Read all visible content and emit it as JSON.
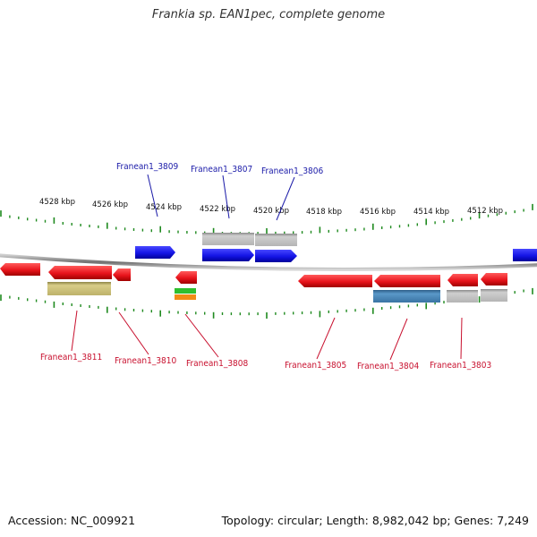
{
  "title": "Frankia sp. EAN1pec, complete genome",
  "footer": {
    "accession": "Accession: NC_009921",
    "summary": "Topology: circular; Length: 8,982,042 bp; Genes: 7,249"
  },
  "colors": {
    "red": "#e8141c",
    "blue": "#1414e6",
    "gray": "#bcbcbc",
    "olive": "#c9be76",
    "steel": "#4a86b4",
    "tick_green": "#1f8a1f",
    "backbone": "#777777",
    "label_red": "#c8102e",
    "label_blue": "#1a1aa8"
  },
  "ticks": [
    {
      "label": "4528 kbp"
    },
    {
      "label": "4526 kbp"
    },
    {
      "label": "4524 kbp"
    },
    {
      "label": "4522 kbp"
    },
    {
      "label": "4520 kbp"
    },
    {
      "label": "4518 kbp"
    },
    {
      "label": "4516 kbp"
    },
    {
      "label": "4514 kbp"
    },
    {
      "label": "4512 kbp"
    }
  ],
  "labels": {
    "top": [
      {
        "text": "Franean1_3809"
      },
      {
        "text": "Franean1_3807"
      },
      {
        "text": "Franean1_3806"
      }
    ],
    "bottom": [
      {
        "text": "Franean1_3811"
      },
      {
        "text": "Franean1_3810"
      },
      {
        "text": "Franean1_3808"
      },
      {
        "text": "Franean1_3805"
      },
      {
        "text": "Franean1_3804"
      },
      {
        "text": "Franean1_3803"
      }
    ]
  }
}
